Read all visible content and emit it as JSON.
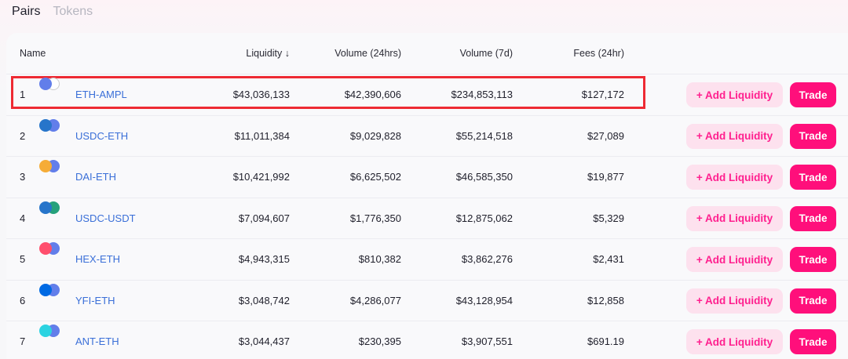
{
  "tabs": [
    {
      "label": "Pairs",
      "active": true
    },
    {
      "label": "Tokens",
      "active": false
    }
  ],
  "table": {
    "headers": {
      "name": "Name",
      "liquidity": "Liquidity ↓",
      "volume_24h": "Volume (24hrs)",
      "volume_7d": "Volume (7d)",
      "fees_24h": "Fees (24hr)"
    },
    "add_liquidity_label": "+ Add Liquidity",
    "trade_label": "Trade",
    "rows": [
      {
        "rank": "1",
        "pair": "ETH-AMPL",
        "liquidity": "$43,036,133",
        "volume_24h": "$42,390,606",
        "volume_7d": "$234,853,113",
        "fees_24h": "$127,172",
        "icons": [
          "eth-coin-icon",
          "ampl-coin-icon"
        ],
        "colors": [
          "#627eea",
          "#ffffff"
        ]
      },
      {
        "rank": "2",
        "pair": "USDC-ETH",
        "liquidity": "$11,011,384",
        "volume_24h": "$9,029,828",
        "volume_7d": "$55,214,518",
        "fees_24h": "$27,089",
        "icons": [
          "usdc-coin-icon",
          "eth-coin-icon"
        ],
        "colors": [
          "#2775ca",
          "#627eea"
        ]
      },
      {
        "rank": "3",
        "pair": "DAI-ETH",
        "liquidity": "$10,421,992",
        "volume_24h": "$6,625,502",
        "volume_7d": "$46,585,350",
        "fees_24h": "$19,877",
        "icons": [
          "dai-coin-icon",
          "eth-coin-icon"
        ],
        "colors": [
          "#f5ac37",
          "#627eea"
        ]
      },
      {
        "rank": "4",
        "pair": "USDC-USDT",
        "liquidity": "$7,094,607",
        "volume_24h": "$1,776,350",
        "volume_7d": "$12,875,062",
        "fees_24h": "$5,329",
        "icons": [
          "usdc-coin-icon",
          "usdt-coin-icon"
        ],
        "colors": [
          "#2775ca",
          "#26a17b"
        ]
      },
      {
        "rank": "5",
        "pair": "HEX-ETH",
        "liquidity": "$4,943,315",
        "volume_24h": "$810,382",
        "volume_7d": "$3,862,276",
        "fees_24h": "$2,431",
        "icons": [
          "hex-coin-icon",
          "eth-coin-icon"
        ],
        "colors": [
          "#ff4f6d",
          "#627eea"
        ]
      },
      {
        "rank": "6",
        "pair": "YFI-ETH",
        "liquidity": "$3,048,742",
        "volume_24h": "$4,286,077",
        "volume_7d": "$43,128,954",
        "fees_24h": "$12,858",
        "icons": [
          "yfi-coin-icon",
          "eth-coin-icon"
        ],
        "colors": [
          "#006ae3",
          "#627eea"
        ]
      },
      {
        "rank": "7",
        "pair": "ANT-ETH",
        "liquidity": "$3,044,437",
        "volume_24h": "$230,395",
        "volume_7d": "$3,907,551",
        "fees_24h": "$691.19",
        "icons": [
          "ant-coin-icon",
          "eth-coin-icon"
        ],
        "colors": [
          "#2cd3e1",
          "#627eea"
        ]
      }
    ]
  },
  "colors": {
    "accent": "#ff0f7b",
    "accent_soft": "#fde1ee",
    "link": "#3a6fd8",
    "highlight_border": "#ee2a33"
  }
}
